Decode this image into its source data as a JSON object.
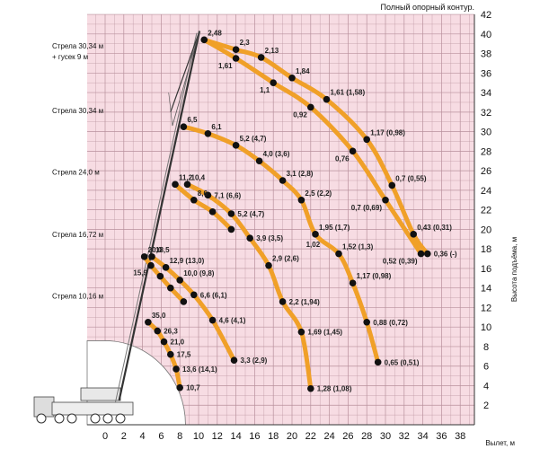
{
  "chart_data": {
    "type": "line",
    "title": "Полный опорный контур.",
    "xlabel": "Вылет, м",
    "ylabel": "Высота подъёма, м",
    "xlim": [
      0,
      38
    ],
    "ylim": [
      0,
      42
    ],
    "x_ticks": [
      0,
      2,
      4,
      6,
      8,
      10,
      12,
      14,
      16,
      18,
      20,
      22,
      24,
      26,
      28,
      30,
      32,
      34,
      36,
      38
    ],
    "y_ticks": [
      2,
      4,
      6,
      8,
      10,
      12,
      14,
      16,
      18,
      20,
      22,
      24,
      26,
      28,
      30,
      32,
      34,
      36,
      38,
      40,
      42
    ],
    "grid": true,
    "boom_labels": [
      {
        "text": "Стрела 30,34 м",
        "y": 38.5
      },
      {
        "text": "+ гусек 9 м",
        "y": 37.4
      },
      {
        "text": "Стрела 30,34 м",
        "y": 31.9
      },
      {
        "text": "Стрела 24,0 м",
        "y": 25.6
      },
      {
        "text": "Стрела 16,72 м",
        "y": 19.2
      },
      {
        "text": "Стрела 10,16 м",
        "y": 12.9
      }
    ],
    "series": [
      {
        "name": "Стрела 10,16 м",
        "points": [
          {
            "x": 4.6,
            "y": 10.5,
            "label": "35,0",
            "side": "upper"
          },
          {
            "x": 5.6,
            "y": 9.6,
            "label": "26,3",
            "side": "right"
          },
          {
            "x": 6.3,
            "y": 8.5,
            "label": "21,0",
            "side": "right"
          },
          {
            "x": 7.0,
            "y": 7.2,
            "label": "17,5",
            "side": "right"
          },
          {
            "x": 7.6,
            "y": 5.7,
            "label": "13,6 (14,1)",
            "side": "right"
          },
          {
            "x": 8.0,
            "y": 3.8,
            "label": "10,7",
            "side": "right"
          }
        ]
      },
      {
        "name": "Стрела 16,72 м (внутр.)",
        "points": [
          {
            "x": 4.2,
            "y": 17.2,
            "label": "20,0",
            "side": "upper"
          },
          {
            "x": 4.9,
            "y": 16.3,
            "label": "15,9",
            "side": "lower"
          },
          {
            "x": 5.9,
            "y": 15.2,
            "label": "",
            "side": "none"
          },
          {
            "x": 7.0,
            "y": 14.0,
            "label": "",
            "side": "none"
          },
          {
            "x": 8.4,
            "y": 12.6,
            "label": "",
            "side": "none"
          }
        ]
      },
      {
        "name": "Стрела 16,72 м",
        "points": [
          {
            "x": 5.0,
            "y": 17.2,
            "label": "18,5",
            "side": "upper"
          },
          {
            "x": 6.5,
            "y": 16.1,
            "label": "12,9 (13,0)",
            "side": "upper"
          },
          {
            "x": 8.0,
            "y": 14.8,
            "label": "10,0 (9,8)",
            "side": "upper"
          },
          {
            "x": 9.5,
            "y": 13.3,
            "label": "6,6 (6,1)",
            "side": "right"
          },
          {
            "x": 11.5,
            "y": 10.7,
            "label": "4,6 (4,1)",
            "side": "right"
          },
          {
            "x": 13.8,
            "y": 6.6,
            "label": "3,3 (2,9)",
            "side": "right"
          }
        ]
      },
      {
        "name": "Стрела 24,0 м (внутр.)",
        "points": [
          {
            "x": 7.5,
            "y": 24.6,
            "label": "11,2",
            "side": "upper"
          },
          {
            "x": 9.5,
            "y": 23.0,
            "label": "8,6",
            "side": "upper"
          },
          {
            "x": 11.5,
            "y": 21.8,
            "label": "",
            "side": "none"
          },
          {
            "x": 13.5,
            "y": 20.0,
            "label": "",
            "side": "none"
          }
        ]
      },
      {
        "name": "Стрела 24,0 м",
        "points": [
          {
            "x": 8.8,
            "y": 24.6,
            "label": "10,4",
            "side": "upper"
          },
          {
            "x": 11.0,
            "y": 23.5,
            "label": "7,1 (6,6)",
            "side": "right"
          },
          {
            "x": 13.5,
            "y": 21.6,
            "label": "5,2 (4,7)",
            "side": "right"
          },
          {
            "x": 15.5,
            "y": 19.1,
            "label": "3,9 (3,5)",
            "side": "right"
          },
          {
            "x": 17.5,
            "y": 16.3,
            "label": "2,9 (2,6)",
            "side": "upper"
          },
          {
            "x": 19.0,
            "y": 12.6,
            "label": "2,2 (1,94)",
            "side": "right"
          },
          {
            "x": 21.0,
            "y": 9.5,
            "label": "1,69 (1,45)",
            "side": "right"
          },
          {
            "x": 22.0,
            "y": 3.7,
            "label": "1,28 (1,08)",
            "side": "right"
          }
        ]
      },
      {
        "name": "Стрела 30,34 м",
        "points": [
          {
            "x": 8.4,
            "y": 30.5,
            "label": "6,5",
            "side": "upper"
          },
          {
            "x": 11.0,
            "y": 29.8,
            "label": "6,1",
            "side": "upper"
          },
          {
            "x": 14.0,
            "y": 28.6,
            "label": "5,2 (4,7)",
            "side": "upper"
          },
          {
            "x": 16.5,
            "y": 27.0,
            "label": "4,0 (3,6)",
            "side": "upper"
          },
          {
            "x": 19.0,
            "y": 25.0,
            "label": "3,1 (2,8)",
            "side": "upper"
          },
          {
            "x": 21.0,
            "y": 23.0,
            "label": "2,5 (2,2)",
            "side": "upper"
          },
          {
            "x": 22.5,
            "y": 19.5,
            "label": "1,95 (1,7)",
            "side": "upper"
          },
          {
            "x": 25.0,
            "y": 17.5,
            "label": "1,52 (1,3)",
            "side": "upper"
          },
          {
            "x": 26.5,
            "y": 14.5,
            "label": "1,17 (0,98)",
            "side": "upper"
          },
          {
            "x": 28.0,
            "y": 10.5,
            "label": "0,88 (0,72)",
            "side": "right"
          },
          {
            "x": 29.2,
            "y": 6.4,
            "label": "0,65 (0,51)",
            "side": "right"
          }
        ]
      },
      {
        "name": "Стрела 30,34 м + гусек 9 м (внутр.)",
        "points": [
          {
            "x": 10.6,
            "y": 39.4,
            "label": "2,48",
            "side": "upper"
          },
          {
            "x": 14.0,
            "y": 37.5,
            "label": "1,61",
            "side": "lower"
          },
          {
            "x": 18.0,
            "y": 35.0,
            "label": "1,1",
            "side": "lower"
          },
          {
            "x": 22.0,
            "y": 32.5,
            "label": "0,92",
            "side": "lower"
          },
          {
            "x": 26.5,
            "y": 28.0,
            "label": "0,76",
            "side": "lower"
          },
          {
            "x": 30.0,
            "y": 23.0,
            "label": "0,7 (0,69)",
            "side": "lower"
          },
          {
            "x": 33.8,
            "y": 17.5,
            "label": "0,52 (0,39)",
            "side": "lower"
          }
        ]
      },
      {
        "name": "Стрела 30,34 м + гусек 9 м",
        "points": [
          {
            "x": 10.6,
            "y": 39.4,
            "label": "",
            "side": "none"
          },
          {
            "x": 14.0,
            "y": 38.4,
            "label": "2,3",
            "side": "upper"
          },
          {
            "x": 16.7,
            "y": 37.6,
            "label": "2,13",
            "side": "upper"
          },
          {
            "x": 20.0,
            "y": 35.5,
            "label": "1,84",
            "side": "upper"
          },
          {
            "x": 23.7,
            "y": 33.3,
            "label": "1,61 (1,58)",
            "side": "upper"
          },
          {
            "x": 28.0,
            "y": 29.2,
            "label": "1,17 (0,98)",
            "side": "upper"
          },
          {
            "x": 30.7,
            "y": 24.5,
            "label": "0,7 (0,55)",
            "side": "upper"
          },
          {
            "x": 33.0,
            "y": 19.5,
            "label": "0,43 (0,31)",
            "side": "upper"
          },
          {
            "x": 34.5,
            "y": 17.5,
            "label": "0,36 (-)",
            "side": "right"
          }
        ]
      }
    ],
    "extra_labels": [
      {
        "x": 21.5,
        "y": 18.2,
        "label": "1,02"
      }
    ],
    "colors": {
      "background": "#f7dce3",
      "grid": "#b8909c",
      "curve": "#f0a028",
      "point": "#111111"
    }
  }
}
